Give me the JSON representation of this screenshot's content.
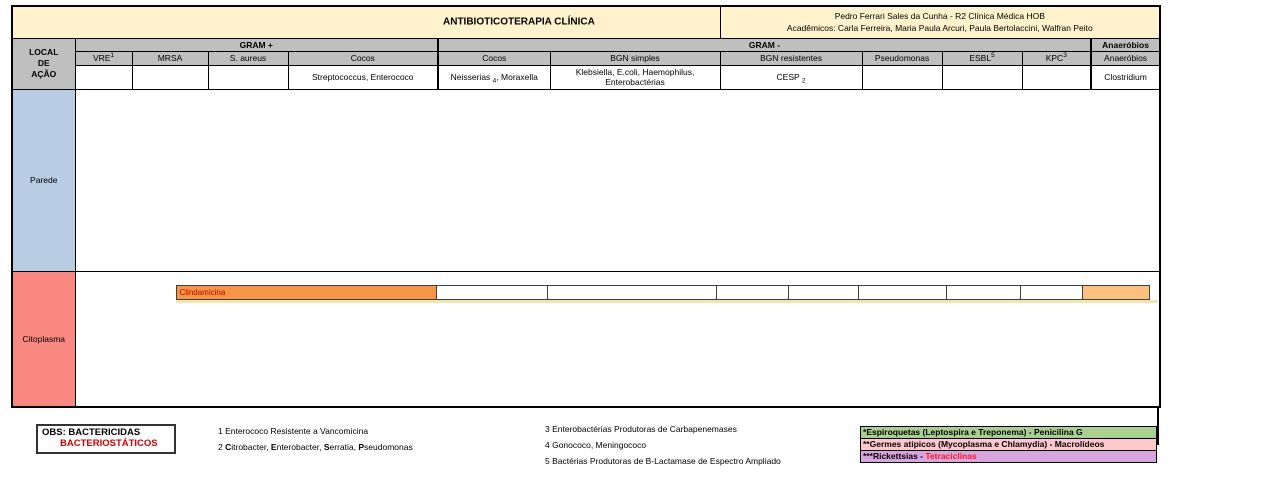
{
  "colors": {
    "title_bg": "#FFF2CC",
    "header_gray": "#BFBFBF",
    "parede_bg": "#B8CCE4",
    "citoplasma_bg": "#F98880",
    "bar_orange": "#F79646",
    "bar_orange_light": "#FAC07E",
    "bar_underline": "#F0E6B2",
    "drug_text_red": "#C00000",
    "legend_green": "#A9D08E",
    "legend_pink": "#FFC7CE",
    "legend_purple": "#D8A5DE",
    "legend_red_text": "#FF1A1A",
    "obs_red_text": "#D00000"
  },
  "header": {
    "title": "ANTIBIOTICOTERAPIA CLÍNICA",
    "credits_line1": "Pedro Ferrari Sales da Cunha - R2 Clínica Médica HOB",
    "credits_line2": "Acadêmicos: Carla Ferreira, Maria Paula Arcuri, Paula Bertolaccini, Walfran Peito"
  },
  "local_header": {
    "line1": "LOCAL",
    "line2": "DE",
    "line3": "AÇÃO"
  },
  "groups": {
    "gram_pos": "GRAM +",
    "gram_neg": "GRAM -",
    "anaerobes": "Anaeróbios"
  },
  "columns": [
    {
      "label": "VRE",
      "sup": "1",
      "org_pre": "",
      "org_sub": "",
      "org_post": ""
    },
    {
      "label": "MRSA",
      "sup": "",
      "org_pre": "",
      "org_sub": "",
      "org_post": ""
    },
    {
      "label": "S. aureus",
      "sup": "",
      "org_pre": "",
      "org_sub": "",
      "org_post": ""
    },
    {
      "label": "Cocos",
      "sup": "",
      "org_pre": "Streptococcus, Enterococo",
      "org_sub": "",
      "org_post": ""
    },
    {
      "label": "Cocos",
      "sup": "",
      "org_pre": "Neisserias ",
      "org_sub": "4",
      "org_post": ", Moraxella"
    },
    {
      "label": "BGN simples",
      "sup": "",
      "org_pre": "Klebsiella, E.coli, Haemophilus, Enterobactérias",
      "org_sub": "",
      "org_post": ""
    },
    {
      "label": "BGN resistentes",
      "sup": "",
      "org_pre": "CESP ",
      "org_sub": "2",
      "org_post": ""
    },
    {
      "label": "Pseudomonas",
      "sup": "",
      "org_pre": "",
      "org_sub": "",
      "org_post": ""
    },
    {
      "label": "ESBL",
      "sup": "5",
      "org_pre": "",
      "org_sub": "",
      "org_post": ""
    },
    {
      "label": "KPC",
      "sup": "3",
      "org_pre": "",
      "org_sub": "",
      "org_post": ""
    },
    {
      "label": "Anaeróbios",
      "sup": "",
      "org_pre": "Clostridium",
      "org_sub": "",
      "org_post": ""
    }
  ],
  "rows": {
    "parede": "Parede",
    "citoplasma": "Citoplasma"
  },
  "bar": {
    "label": "Clindamicina"
  },
  "obs": {
    "line1": "OBS: BACTERICIDAS",
    "line2": "BACTERIOSTÁTICOS"
  },
  "footnotes_left": [
    {
      "segments": [
        {
          "t": "1 Enterococo Resistente a Vancomicina",
          "b": false
        }
      ]
    },
    {
      "segments": [
        {
          "t": "2 ",
          "b": false
        },
        {
          "t": "C",
          "b": true
        },
        {
          "t": "itrobacter, ",
          "b": false
        },
        {
          "t": "E",
          "b": true
        },
        {
          "t": "nterobacter, ",
          "b": false
        },
        {
          "t": "S",
          "b": true
        },
        {
          "t": "erratia, ",
          "b": false
        },
        {
          "t": "P",
          "b": true
        },
        {
          "t": "seudomonas",
          "b": false
        }
      ]
    }
  ],
  "footnotes_right": [
    {
      "segments": [
        {
          "t": "3 Enterobactérias Produtoras de Carbapenemases",
          "b": false
        }
      ]
    },
    {
      "segments": [
        {
          "t": "4 Gonococo, Meningococo",
          "b": false
        }
      ]
    },
    {
      "segments": [
        {
          "t": "5 Bactérias Produtoras de B-Lactamase de Espectro Ampliado",
          "b": false
        }
      ]
    }
  ],
  "legend": [
    {
      "prefix": "*",
      "text": "Espiroquetas (Leptospira e Treponema) - Penicilina G",
      "highlight": "",
      "color": "#A9D08E"
    },
    {
      "prefix": "**",
      "text": "Germes atípicos (Mycoplasma e Chlamydia) - Macrolídeos",
      "highlight": "",
      "color": "#FFC7CE"
    },
    {
      "prefix": "***",
      "text": "Rickettsias - ",
      "highlight": "Tetraciclinas",
      "color": "#D8A5DE"
    }
  ]
}
